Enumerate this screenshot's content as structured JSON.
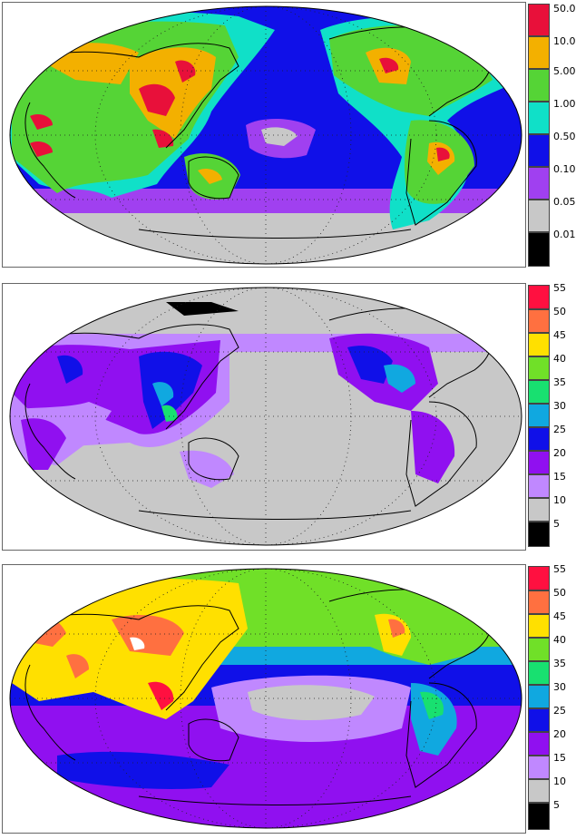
{
  "panels": [
    {
      "id": "top",
      "scale_colors": [
        "#e8103a",
        "#f3b000",
        "#55d436",
        "#10e0c8",
        "#1010e8",
        "#a040f0",
        "#c8c8c8",
        "#000000"
      ],
      "scale_labels": [
        "50.0",
        "10.0",
        "5.00",
        "1.00",
        "0.50",
        "0.10",
        "0.05",
        "0.01"
      ]
    },
    {
      "id": "middle",
      "scale_colors": [
        "#ff1040",
        "#ff7040",
        "#ffe000",
        "#70e028",
        "#18e070",
        "#10a8e0",
        "#1010e8",
        "#9010f0",
        "#c088ff",
        "#c8c8c8",
        "#000000"
      ],
      "scale_labels": [
        "55",
        "50",
        "45",
        "40",
        "35",
        "30",
        "25",
        "20",
        "15",
        "10",
        "5"
      ]
    },
    {
      "id": "bottom",
      "scale_colors": [
        "#ff1040",
        "#ff7040",
        "#ffe000",
        "#70e028",
        "#18e070",
        "#10a8e0",
        "#1010e8",
        "#9010f0",
        "#c088ff",
        "#c8c8c8",
        "#000000"
      ],
      "scale_labels": [
        "55",
        "50",
        "45",
        "40",
        "35",
        "30",
        "25",
        "20",
        "15",
        "10",
        "5"
      ]
    }
  ]
}
